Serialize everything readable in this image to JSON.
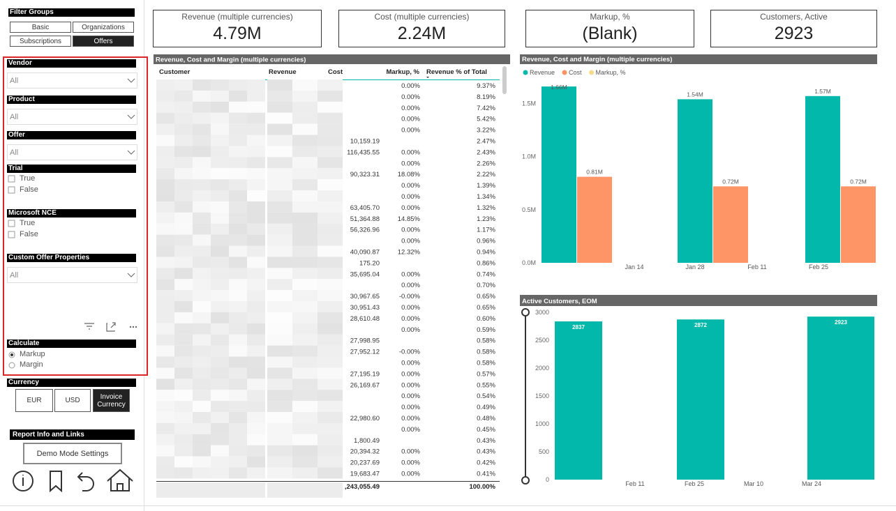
{
  "filter_panel": {
    "title": "Filter Groups",
    "groups": [
      "Basic",
      "Organizations",
      "Subscriptions",
      "Offers"
    ],
    "dropdowns": [
      {
        "label": "Vendor",
        "value": "All"
      },
      {
        "label": "Product",
        "value": "All"
      },
      {
        "label": "Offer",
        "value": "All"
      },
      {
        "label": "Custom Offer Properties",
        "value": "All"
      }
    ],
    "checklists": [
      {
        "label": "Trial",
        "options": [
          "True",
          "False"
        ]
      },
      {
        "label": "Microsoft NCE",
        "options": [
          "True",
          "False"
        ]
      }
    ],
    "calculate": {
      "label": "Calculate",
      "options": [
        "Markup",
        "Margin"
      ]
    },
    "currency": {
      "label": "Currency",
      "options": [
        "EUR",
        "USD",
        "Invoice Currency"
      ]
    },
    "report_info": {
      "label": "Report Info and Links",
      "button": "Demo Mode Settings"
    }
  },
  "kpis": [
    {
      "label": "Revenue (multiple currencies)",
      "value": "4.79M"
    },
    {
      "label": "Cost (multiple currencies)",
      "value": "2.24M"
    },
    {
      "label": "Markup, %",
      "value": "(Blank)"
    },
    {
      "label": "Customers, Active",
      "value": "2923"
    }
  ],
  "table": {
    "title": "Revenue, Cost and Margin (multiple currencies)",
    "columns": [
      "Customer",
      "Revenue",
      "Cost",
      "Markup, %",
      "Revenue % of Total"
    ],
    "rows": [
      [
        null,
        "0.00%",
        "9.37%"
      ],
      [
        null,
        "0.00%",
        "8.19%"
      ],
      [
        null,
        "0.00%",
        "7.42%"
      ],
      [
        null,
        "0.00%",
        "5.42%"
      ],
      [
        null,
        "0.00%",
        "3.22%"
      ],
      [
        "10,159.19",
        null,
        "2.47%"
      ],
      [
        "116,435.55",
        "0.00%",
        "2.43%"
      ],
      [
        null,
        "0.00%",
        "2.26%"
      ],
      [
        "90,323.31",
        "18.08%",
        "2.22%"
      ],
      [
        null,
        "0.00%",
        "1.39%"
      ],
      [
        null,
        "0.00%",
        "1.34%"
      ],
      [
        "63,405.70",
        "0.00%",
        "1.32%"
      ],
      [
        "51,364.88",
        "14.85%",
        "1.23%"
      ],
      [
        "56,326.96",
        "0.00%",
        "1.17%"
      ],
      [
        null,
        "0.00%",
        "0.96%"
      ],
      [
        "40,090.87",
        "12.32%",
        "0.94%"
      ],
      [
        "175.20",
        null,
        "0.86%"
      ],
      [
        "35,695.04",
        "0.00%",
        "0.74%"
      ],
      [
        null,
        "0.00%",
        "0.70%"
      ],
      [
        "30,967.65",
        "-0.00%",
        "0.65%"
      ],
      [
        "30,951.43",
        "0.00%",
        "0.65%"
      ],
      [
        "28,610.48",
        "0.00%",
        "0.60%"
      ],
      [
        null,
        "0.00%",
        "0.59%"
      ],
      [
        "27,998.95",
        null,
        "0.58%"
      ],
      [
        "27,952.12",
        "-0.00%",
        "0.58%"
      ],
      [
        null,
        "0.00%",
        "0.58%"
      ],
      [
        "27,195.19",
        "0.00%",
        "0.57%"
      ],
      [
        "26,169.67",
        "0.00%",
        "0.55%"
      ],
      [
        null,
        "0.00%",
        "0.54%"
      ],
      [
        null,
        "0.00%",
        "0.49%"
      ],
      [
        "22,980.60",
        "0.00%",
        "0.48%"
      ],
      [
        null,
        "0.00%",
        "0.45%"
      ],
      [
        "1,800.49",
        null,
        "0.43%"
      ],
      [
        "20,394.32",
        "0.00%",
        "0.43%"
      ],
      [
        "20,237.69",
        "0.00%",
        "0.42%"
      ],
      [
        "19,683.47",
        "0.00%",
        "0.41%"
      ]
    ],
    "total": [
      ",243,055.49",
      null,
      "100.00%"
    ]
  },
  "chart_data": [
    {
      "type": "bar",
      "title": "Revenue, Cost and Margin (multiple currencies)",
      "categories": [
        null,
        null,
        null
      ],
      "xtick_labels": [
        "Jan 14",
        "Jan 28",
        "Feb 11",
        "Feb 25"
      ],
      "series": [
        {
          "name": "Revenue",
          "color": "#01b8aa",
          "values": [
            1.66,
            1.54,
            1.57
          ],
          "value_labels": [
            "1.66M",
            "1.54M",
            "1.57M"
          ]
        },
        {
          "name": "Cost",
          "color": "#fd9567",
          "values": [
            0.81,
            0.72,
            0.72
          ],
          "value_labels": [
            "0.81M",
            "0.72M",
            "0.72M"
          ]
        },
        {
          "name": "Markup, %",
          "color": "#f5dc8c",
          "values": [
            null,
            null,
            null
          ]
        }
      ],
      "ylim": [
        0,
        1.7
      ],
      "yticks": [
        {
          "value": 0,
          "label": "0.0M"
        },
        {
          "value": 0.5,
          "label": "0.5M"
        },
        {
          "value": 1,
          "label": "1.0M"
        },
        {
          "value": 1.5,
          "label": "1.5M"
        }
      ],
      "legend": "top-left"
    },
    {
      "type": "bar",
      "title": "Active Customers, EOM",
      "categories": [
        null,
        null,
        null
      ],
      "xtick_labels": [
        "Feb 11",
        "Feb 25",
        "Mar 10",
        "Mar 24"
      ],
      "values": [
        2837,
        2872,
        2923
      ],
      "color": "#01b8aa",
      "ylim": [
        0,
        3000
      ],
      "yticks": [
        0,
        500,
        1000,
        1500,
        2000,
        2500,
        3000
      ]
    }
  ]
}
